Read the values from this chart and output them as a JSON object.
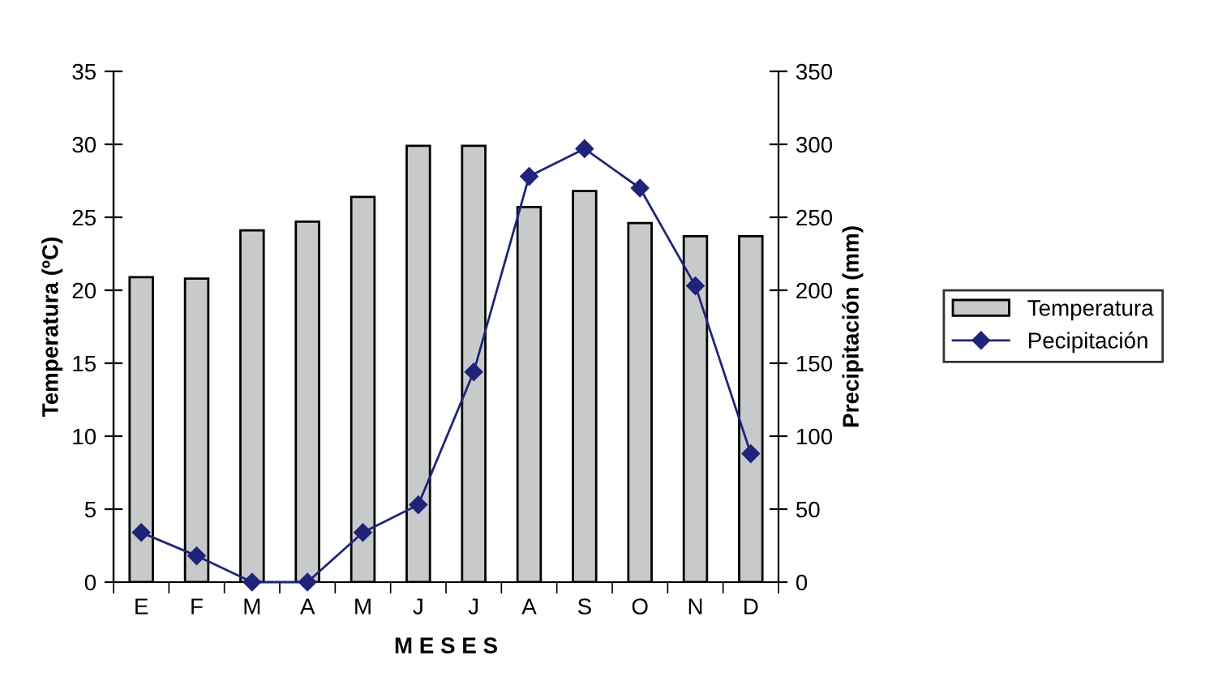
{
  "chart_data": {
    "type": "bar",
    "xlabel": "M E S E S",
    "ylabel": "Temperatura (ºC)",
    "y2label": "Precipitación (mm)",
    "categories": [
      "E",
      "F",
      "M",
      "A",
      "M",
      "J",
      "J",
      "A",
      "S",
      "O",
      "N",
      "D"
    ],
    "series": [
      {
        "name": "Temperatura",
        "color": "#c8c9cb",
        "values": [
          20.9,
          20.8,
          24.1,
          24.7,
          26.4,
          29.9,
          29.9,
          25.7,
          26.8,
          24.6,
          23.7,
          23.7
        ]
      },
      {
        "name": "Pecipitación",
        "type": "line",
        "axis": "y2",
        "color": "#1f2478",
        "marker": "diamond",
        "values": [
          34,
          18,
          0,
          0,
          34,
          53,
          144,
          278,
          297,
          270,
          203,
          88
        ]
      }
    ],
    "ylim": [
      0,
      35
    ],
    "yticks": [
      0,
      5,
      10,
      15,
      20,
      25,
      30,
      35
    ],
    "y2lim": [
      0,
      350
    ],
    "y2ticks": [
      0,
      50,
      100,
      150,
      200,
      250,
      300,
      350
    ],
    "grid": false,
    "legend": "right"
  }
}
